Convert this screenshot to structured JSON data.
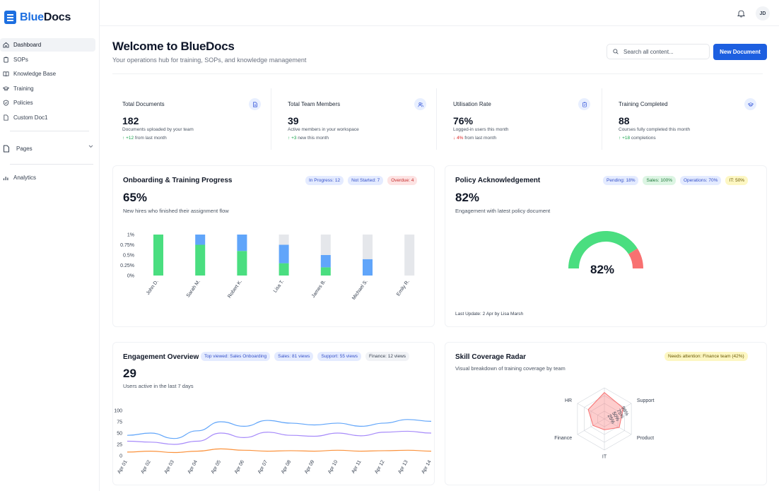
{
  "app": {
    "name_part1": "Blue",
    "name_part2": "Docs"
  },
  "sidebar": {
    "items": [
      {
        "label": "Dashboard",
        "icon": "home-icon"
      },
      {
        "label": "SOPs",
        "icon": "clipboard-icon"
      },
      {
        "label": "Knowledge Base",
        "icon": "book-icon"
      },
      {
        "label": "Training",
        "icon": "graduation-cap-icon"
      },
      {
        "label": "Policies",
        "icon": "shield-icon"
      },
      {
        "label": "Custom Doc1",
        "icon": "document-icon"
      }
    ],
    "pages_label": "Pages",
    "analytics_label": "Analytics"
  },
  "topbar": {
    "avatar_initials": "JD"
  },
  "header": {
    "title": "Welcome to BlueDocs",
    "subtitle": "Your operations hub for training, SOPs, and knowledge management",
    "search_placeholder": "Search all content...",
    "new_document_label": "New Document"
  },
  "stats": [
    {
      "label": "Total Documents",
      "value": "182",
      "desc": "Documents uploaded by your team",
      "delta_arrow": "↑",
      "delta": "+12",
      "delta_rest": " from last month",
      "trend": "up",
      "icon": "document-icon"
    },
    {
      "label": "Total Team Members",
      "value": "39",
      "desc": "Active members in your workspace",
      "delta_arrow": "↑",
      "delta": "+3",
      "delta_rest": " new this month",
      "trend": "up",
      "icon": "users-icon"
    },
    {
      "label": "Utilisation Rate",
      "value": "76%",
      "desc": "Logged-in users this month",
      "delta_arrow": "↓",
      "delta": "4%",
      "delta_rest": " from last month",
      "trend": "down",
      "icon": "clipboard-check-icon"
    },
    {
      "label": "Training Completed",
      "value": "88",
      "desc": "Courses fully completed this month",
      "delta_arrow": "↑",
      "delta": "+18",
      "delta_rest": " completions",
      "trend": "up",
      "icon": "graduation-cap-icon"
    }
  ],
  "onboarding": {
    "title": "Onboarding & Training Progress",
    "value": "65%",
    "subtitle": "New hires who finished their assignment flow",
    "pills": [
      {
        "label": "In Progress: 12",
        "tone": "blue"
      },
      {
        "label": "Not Started: 7",
        "tone": "blue"
      },
      {
        "label": "Overdue: 4",
        "tone": "red"
      }
    ]
  },
  "policy": {
    "title": "Policy Acknowledgement",
    "value": "82%",
    "subtitle": "Engagement with latest policy document",
    "gauge_label": "82%",
    "last_update": "Last Update: 2 Apr by Lisa Marsh",
    "pills": [
      {
        "label": "Pending: 18%",
        "tone": "blue"
      },
      {
        "label": "Sales: 100%",
        "tone": "green"
      },
      {
        "label": "Operations: 70%",
        "tone": "blue"
      },
      {
        "label": "IT: 50%",
        "tone": "yellow"
      }
    ]
  },
  "engagement": {
    "title": "Engagement Overview",
    "value": "29",
    "subtitle": "Users active in the last 7 days",
    "pills": [
      {
        "label": "Top viewed: Sales Onboarding",
        "tone": "blue"
      },
      {
        "label": "Sales: 81 views",
        "tone": "blue"
      },
      {
        "label": "Support: 55 views",
        "tone": "blue"
      },
      {
        "label": "Finance: 12 views",
        "tone": "gray"
      }
    ]
  },
  "skill": {
    "title": "Skill Coverage Radar",
    "subtitle": "Visual breakdown of training coverage by team",
    "pills": [
      {
        "label": "Needs attention: Finance team (42%)",
        "tone": "yellow"
      }
    ]
  },
  "colors": {
    "accent": "#1d5fe0",
    "completed": "#4ade80",
    "in_progress": "#60a5fa",
    "not_started": "#e5e7eb",
    "gauge_done": "#4ade80",
    "gauge_rest": "#f87171"
  },
  "chart_data": [
    {
      "type": "bar",
      "stacked": true,
      "categories": [
        "John D.",
        "Sarah M.",
        "Robert K.",
        "Lisa T.",
        "James B.",
        "Michael S.",
        "Emily R."
      ],
      "series": [
        {
          "values": [
            1.0,
            0.75,
            0.6,
            0.3,
            0.2,
            0.0,
            0.0
          ],
          "color": "#4ade80"
        },
        {
          "values": [
            0.0,
            0.25,
            0.4,
            0.45,
            0.3,
            0.4,
            0.0
          ],
          "color": "#60a5fa"
        },
        {
          "values": [
            0.0,
            0.0,
            0.0,
            0.25,
            0.5,
            0.6,
            1.0
          ],
          "color": "#e5e7eb"
        }
      ],
      "yticks": [
        "0%",
        "0.25%",
        "0.5%",
        "0.75%",
        "1%"
      ],
      "ylim": [
        0,
        1
      ]
    },
    {
      "type": "pie",
      "variant": "gauge",
      "values": [
        82,
        18
      ],
      "colors": [
        "#4ade80",
        "#f87171"
      ],
      "center_label": "82%"
    },
    {
      "type": "line",
      "x": [
        "Apr 01",
        "Apr 02",
        "Apr 03",
        "Apr 04",
        "Apr 05",
        "Apr 06",
        "Apr 07",
        "Apr 08",
        "Apr 09",
        "Apr 10",
        "Apr 11",
        "Apr 12",
        "Apr 13",
        "Apr 14"
      ],
      "series": [
        {
          "values": [
            45,
            50,
            38,
            55,
            75,
            65,
            78,
            72,
            68,
            72,
            65,
            72,
            80,
            76
          ],
          "color": "#60a5fa"
        },
        {
          "values": [
            32,
            30,
            25,
            32,
            50,
            40,
            52,
            45,
            43,
            50,
            44,
            52,
            54,
            50
          ],
          "color": "#a78bfa"
        },
        {
          "values": [
            8,
            10,
            7,
            10,
            15,
            12,
            10,
            11,
            10,
            12,
            10,
            11,
            12,
            10
          ],
          "color": "#fb923c"
        }
      ],
      "yticks": [
        "0",
        "25",
        "50",
        "75",
        "100"
      ],
      "ylim": [
        0,
        100
      ]
    },
    {
      "type": "radar",
      "axes": [
        "",
        "Support",
        "Product",
        "IT",
        "Finance",
        "HR"
      ],
      "values": [
        85,
        70,
        55,
        35,
        42,
        60
      ],
      "value_labels": [
        "",
        "98%",
        "75%",
        "50%",
        "25%",
        ""
      ],
      "color": "#f87171"
    }
  ]
}
